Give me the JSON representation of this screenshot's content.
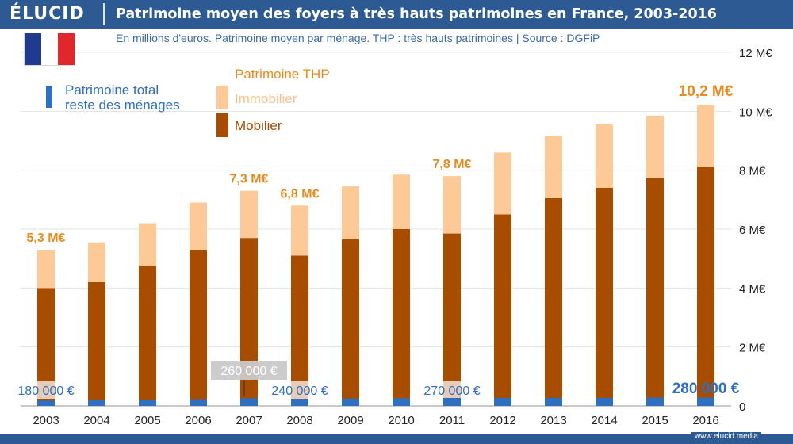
{
  "header": {
    "brand": "ÉLUCID",
    "title": "Patrimoine moyen des foyers à très hauts patrimoines en France, 2003-2016",
    "subtitle": "En millions d'euros. Patrimoine moyen par ménage. THP : très hauts patrimoines  |  Source : DGFiP"
  },
  "flag": {
    "colors": [
      "#1f3a8f",
      "#ffffff",
      "#e1262c"
    ]
  },
  "legend": {
    "total_line1": "Patrimoine total",
    "total_line2": "reste des ménages",
    "thp_title": "Patrimoine THP",
    "immobilier": "Immobilier",
    "mobilier": "Mobilier"
  },
  "colors": {
    "mobilier": "#a84c00",
    "immobilier": "#fdc996",
    "reste": "#2f6fbf",
    "annotation": "#ea8a1f",
    "reste_label": "#2f6fbf",
    "grid": "#e3e3e3",
    "axis_text": "#222222"
  },
  "chart_data": {
    "type": "bar",
    "stacked": true,
    "title": "Patrimoine moyen des foyers à très hauts patrimoines en France, 2003-2016",
    "ylabel": "M€",
    "ylim": [
      0,
      12
    ],
    "yticks": [
      0,
      2,
      4,
      6,
      8,
      10,
      12
    ],
    "ytick_labels": [
      "0",
      "2 M€",
      "4 M€",
      "6 M€",
      "8 M€",
      "10 M€",
      "12 M€"
    ],
    "categories": [
      "2003",
      "2004",
      "2005",
      "2006",
      "2007",
      "2008",
      "2009",
      "2010",
      "2011",
      "2012",
      "2013",
      "2014",
      "2015",
      "2016"
    ],
    "series": [
      {
        "name": "Mobilier",
        "values": [
          4.0,
          4.2,
          4.75,
          5.3,
          5.7,
          5.1,
          5.65,
          6.0,
          5.85,
          6.5,
          7.05,
          7.4,
          7.75,
          8.1
        ]
      },
      {
        "name": "Immobilier",
        "values": [
          1.3,
          1.35,
          1.45,
          1.6,
          1.6,
          1.7,
          1.8,
          1.85,
          1.95,
          2.1,
          2.1,
          2.15,
          2.1,
          2.1
        ]
      },
      {
        "name": "Patrimoine total reste des ménages",
        "values": [
          0.18,
          0.19,
          0.2,
          0.23,
          0.26,
          0.24,
          0.25,
          0.26,
          0.27,
          0.27,
          0.27,
          0.27,
          0.28,
          0.28
        ]
      }
    ],
    "thp_annotations": [
      {
        "category": "2003",
        "label": "5,3 M€"
      },
      {
        "category": "2007",
        "label": "7,3 M€"
      },
      {
        "category": "2008",
        "label": "6,8 M€"
      },
      {
        "category": "2011",
        "label": "7,8 M€"
      },
      {
        "category": "2016",
        "label": "10,2 M€"
      }
    ],
    "reste_annotations": [
      {
        "category": "2003",
        "label": "180 000 €"
      },
      {
        "category": "2007",
        "label": "260 000 €"
      },
      {
        "category": "2008",
        "label": "240 000 €"
      },
      {
        "category": "2011",
        "label": "270 000 €"
      },
      {
        "category": "2016",
        "label": "280 000 €"
      }
    ]
  },
  "footer": {
    "url": "www.elucid.media"
  }
}
